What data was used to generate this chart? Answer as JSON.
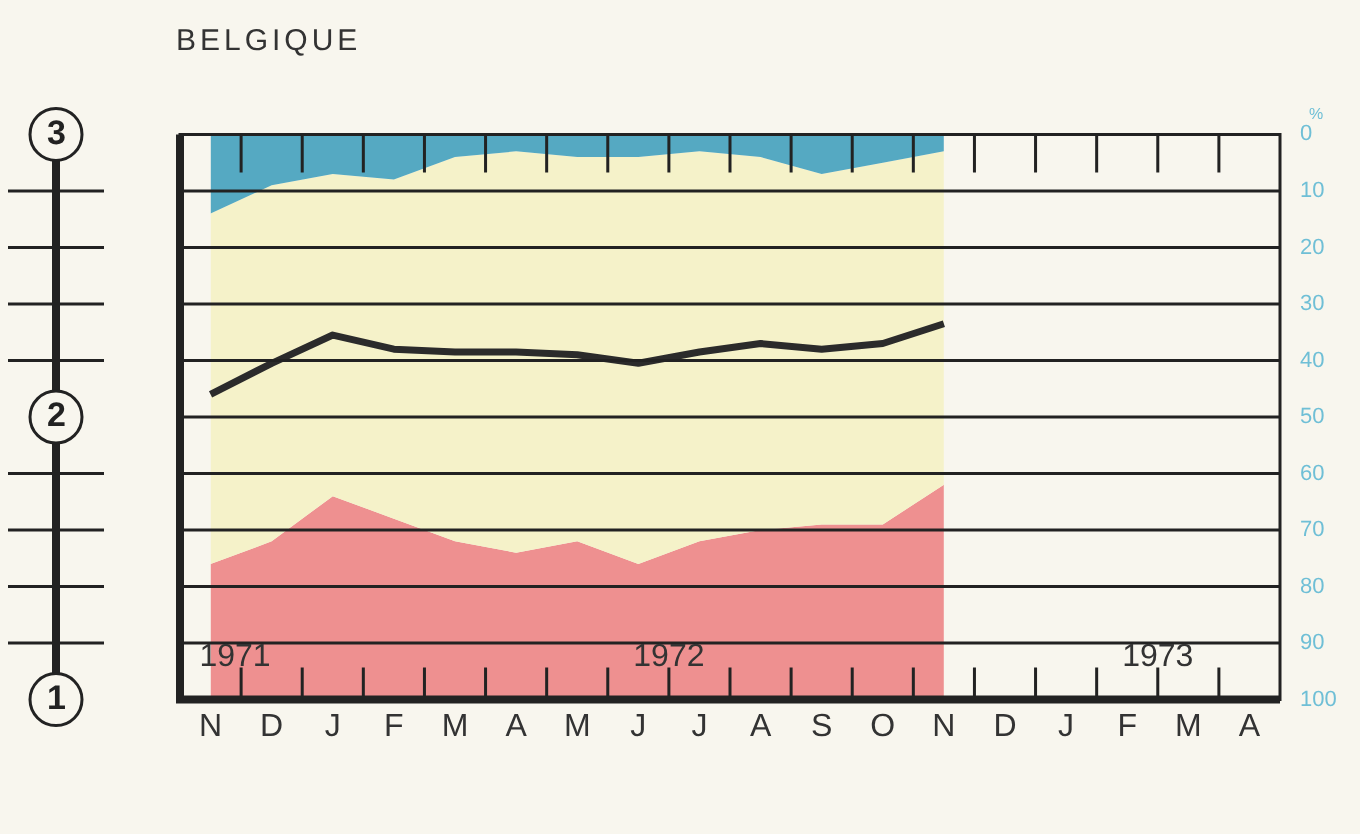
{
  "chart_data": {
    "type": "area",
    "title": "BELGIQUE",
    "ylabel": "%",
    "stacked": true,
    "grid": "y",
    "categories": [
      "N",
      "D",
      "J",
      "F",
      "M",
      "A",
      "M",
      "J",
      "J",
      "A",
      "S",
      "O",
      "N",
      "D",
      "J",
      "F",
      "M",
      "A"
    ],
    "ylim": [
      100,
      0
    ],
    "yticks": [
      0,
      10,
      20,
      30,
      40,
      50,
      60,
      70,
      80,
      90,
      100
    ],
    "y2lim": [
      1,
      3
    ],
    "y2ticks": [
      1,
      {
        "value": 1.2,
        "label": null
      },
      {
        "value": 1.4,
        "label": null
      },
      {
        "value": 1.6,
        "label": null
      },
      {
        "value": 1.8,
        "label": null
      },
      2,
      {
        "value": 2.2,
        "label": null
      },
      {
        "value": 2.4,
        "label": null
      },
      {
        "value": 2.6,
        "label": null
      },
      {
        "value": 2.8,
        "label": null
      },
      3
    ],
    "series": [
      {
        "color": "#55a9c2",
        "values": [
          14,
          9,
          7,
          8,
          4,
          3,
          4,
          4,
          3,
          4,
          7,
          5,
          3,
          null,
          null,
          null,
          null,
          null
        ]
      },
      {
        "color": "#f5f2c9",
        "values": [
          62,
          63,
          57,
          60,
          68,
          71,
          68,
          72,
          69,
          66,
          62,
          64,
          59,
          null,
          null,
          null,
          null,
          null
        ]
      },
      {
        "color": "#ee9090",
        "values": [
          24,
          28,
          36,
          32,
          28,
          26,
          28,
          24,
          28,
          30,
          31,
          31,
          38,
          null,
          null,
          null,
          null,
          null
        ]
      },
      {
        "type": "line",
        "axis": "y2",
        "color": "#2b2b2b",
        "values": [
          2.08,
          2.19,
          2.29,
          2.24,
          2.23,
          2.23,
          2.22,
          2.19,
          2.23,
          2.26,
          2.24,
          2.26,
          2.33,
          null,
          null,
          null,
          null,
          null
        ]
      }
    ],
    "annotations": [
      "1971",
      "1972",
      "1973"
    ]
  }
}
